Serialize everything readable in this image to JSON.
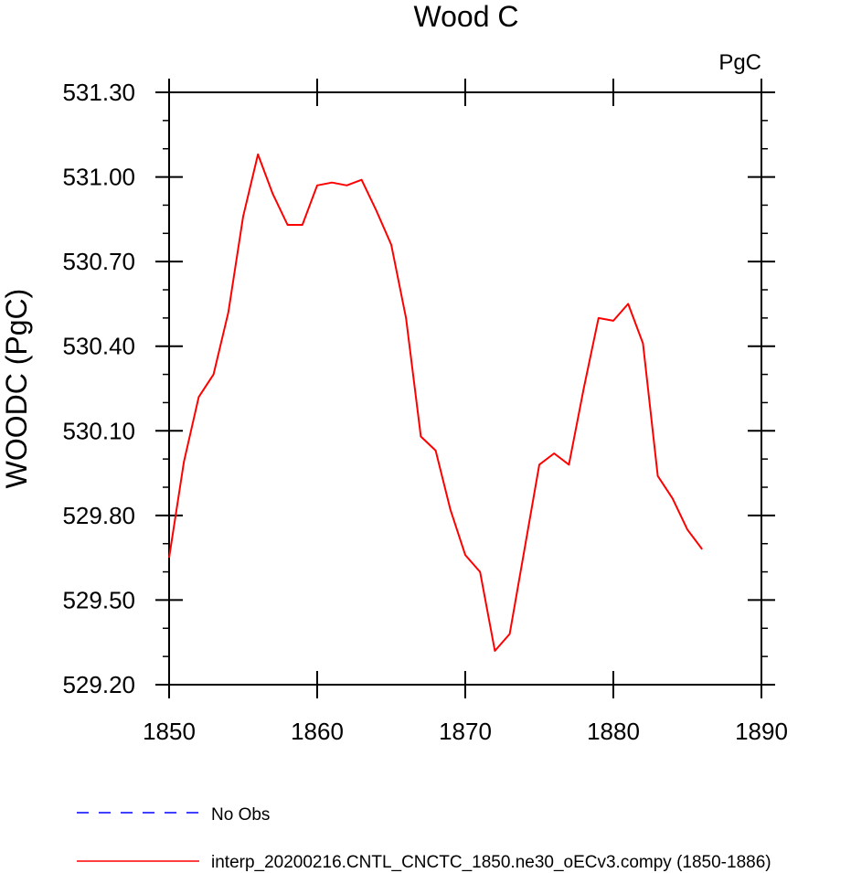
{
  "chart_data": {
    "type": "line",
    "title": "Wood C",
    "units": "PgC",
    "xlabel": "",
    "ylabel": "WOODC  (PgC)",
    "xlim": [
      1850,
      1890
    ],
    "ylim": [
      529.2,
      531.3
    ],
    "xticks": [
      "1850",
      "1860",
      "1870",
      "1880",
      "1890"
    ],
    "yticks": [
      "529.20",
      "529.50",
      "529.80",
      "530.10",
      "530.40",
      "530.70",
      "531.00",
      "531.30"
    ],
    "grid": false,
    "legend_position": "bottom",
    "legend": [
      {
        "label": "No Obs",
        "color": "#0000ff",
        "style": "dashed"
      },
      {
        "label": "interp_20200216.CNTL_CNCTC_1850.ne30_oECv3.compy (1850-1886)",
        "color": "#ff0000",
        "style": "solid"
      }
    ],
    "series": [
      {
        "name": "interp_20200216.CNTL_CNCTC_1850.ne30_oECv3.compy (1850-1886)",
        "color": "#ff0000",
        "x": [
          1850,
          1851,
          1852,
          1853,
          1854,
          1855,
          1856,
          1857,
          1858,
          1859,
          1860,
          1861,
          1862,
          1863,
          1864,
          1865,
          1866,
          1867,
          1868,
          1869,
          1870,
          1871,
          1872,
          1873,
          1874,
          1875,
          1876,
          1877,
          1878,
          1879,
          1880,
          1881,
          1882,
          1883,
          1884,
          1885,
          1886
        ],
        "y": [
          529.65,
          529.99,
          530.22,
          530.3,
          530.52,
          530.86,
          531.08,
          530.94,
          530.83,
          530.83,
          530.97,
          530.98,
          530.97,
          530.99,
          530.88,
          530.76,
          530.5,
          530.08,
          530.03,
          529.82,
          529.66,
          529.6,
          529.32,
          529.38,
          529.68,
          529.98,
          530.02,
          529.98,
          530.25,
          530.5,
          530.49,
          530.55,
          530.41,
          529.94,
          529.86,
          529.75,
          529.68
        ]
      }
    ]
  }
}
